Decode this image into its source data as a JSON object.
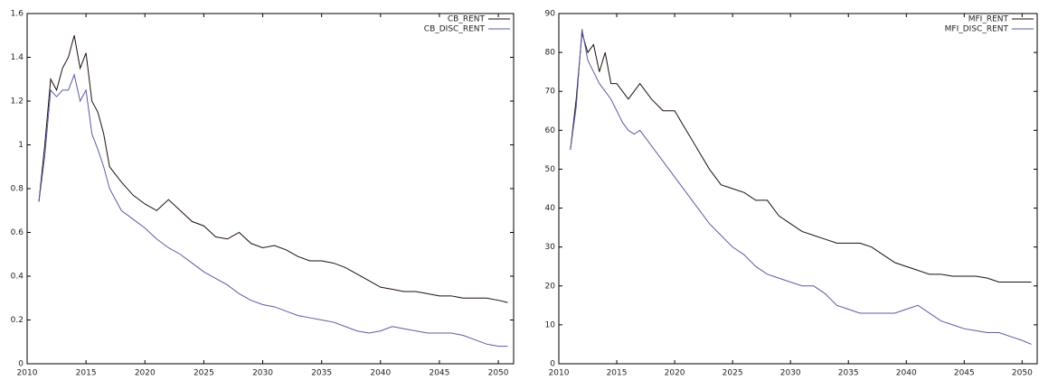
{
  "chart_data": [
    {
      "type": "line",
      "x": [
        2011,
        2011.5,
        2012,
        2012.5,
        2013,
        2013.5,
        2014,
        2014.5,
        2015,
        2015.5,
        2016,
        2016.5,
        2017,
        2018,
        2019,
        2020,
        2021,
        2022,
        2023,
        2024,
        2025,
        2026,
        2027,
        2028,
        2029,
        2030,
        2031,
        2032,
        2033,
        2034,
        2035,
        2036,
        2037,
        2038,
        2039,
        2040,
        2041,
        2042,
        2043,
        2044,
        2045,
        2046,
        2047,
        2048,
        2049,
        2050,
        2050.8
      ],
      "series": [
        {
          "name": "CB_RENT",
          "color": "#1e0d0d",
          "values": [
            0.74,
            1.0,
            1.3,
            1.25,
            1.35,
            1.4,
            1.5,
            1.35,
            1.42,
            1.2,
            1.15,
            1.05,
            0.9,
            0.83,
            0.77,
            0.73,
            0.7,
            0.75,
            0.7,
            0.65,
            0.63,
            0.58,
            0.57,
            0.6,
            0.55,
            0.53,
            0.54,
            0.52,
            0.49,
            0.47,
            0.47,
            0.46,
            0.44,
            0.41,
            0.38,
            0.35,
            0.34,
            0.33,
            0.33,
            0.32,
            0.31,
            0.31,
            0.3,
            0.3,
            0.3,
            0.29,
            0.28
          ]
        },
        {
          "name": "CB_DISC_RENT",
          "color": "#5b5ba3",
          "values": [
            0.74,
            0.95,
            1.25,
            1.22,
            1.25,
            1.25,
            1.32,
            1.2,
            1.25,
            1.05,
            0.98,
            0.9,
            0.8,
            0.7,
            0.66,
            0.62,
            0.57,
            0.53,
            0.5,
            0.46,
            0.42,
            0.39,
            0.36,
            0.32,
            0.29,
            0.27,
            0.26,
            0.24,
            0.22,
            0.21,
            0.2,
            0.19,
            0.17,
            0.15,
            0.14,
            0.15,
            0.17,
            0.16,
            0.15,
            0.14,
            0.14,
            0.14,
            0.13,
            0.11,
            0.09,
            0.08,
            0.08
          ]
        }
      ],
      "xlim": [
        2010,
        2051.3
      ],
      "xticks": [
        2010,
        2015,
        2020,
        2025,
        2030,
        2035,
        2040,
        2045,
        2050
      ],
      "ylim": [
        0,
        1.6
      ],
      "yticks": [
        0,
        0.2,
        0.4,
        0.6,
        0.8,
        1,
        1.2,
        1.4,
        1.6
      ],
      "legend": "upper right"
    },
    {
      "type": "line",
      "x": [
        2011,
        2011.5,
        2012,
        2012.5,
        2013,
        2013.5,
        2014,
        2014.5,
        2015,
        2015.5,
        2016,
        2016.5,
        2017,
        2018,
        2019,
        2020,
        2021,
        2022,
        2023,
        2024,
        2025,
        2026,
        2027,
        2028,
        2029,
        2030,
        2031,
        2032,
        2033,
        2034,
        2035,
        2036,
        2037,
        2038,
        2039,
        2040,
        2041,
        2042,
        2043,
        2044,
        2045,
        2046,
        2047,
        2048,
        2049,
        2050,
        2050.8
      ],
      "series": [
        {
          "name": "MFI_RENT",
          "color": "#1e0d0d",
          "values": [
            55,
            68,
            85,
            80,
            82,
            75,
            80,
            72,
            72,
            70,
            68,
            70,
            72,
            68,
            65,
            65,
            60,
            55,
            50,
            46,
            45,
            44,
            42,
            42,
            38,
            36,
            34,
            33,
            32,
            31,
            31,
            31,
            30,
            28,
            26,
            25,
            24,
            23,
            23,
            22.5,
            22.5,
            22.5,
            22,
            21,
            21,
            21,
            21
          ]
        },
        {
          "name": "MFI_DISC_RENT",
          "color": "#5b5ba3",
          "values": [
            55,
            66,
            86,
            78,
            75,
            72,
            70,
            68,
            65,
            62,
            60,
            59,
            60,
            56,
            52,
            48,
            44,
            40,
            36,
            33,
            30,
            28,
            25,
            23,
            22,
            21,
            20,
            20,
            18,
            15,
            14,
            13,
            13,
            13,
            13,
            14,
            15,
            13,
            11,
            10,
            9,
            8.5,
            8,
            8,
            7,
            6,
            5
          ]
        }
      ],
      "xlim": [
        2010,
        2051.3
      ],
      "xticks": [
        2010,
        2015,
        2020,
        2025,
        2030,
        2035,
        2040,
        2045,
        2050
      ],
      "ylim": [
        0,
        90
      ],
      "yticks": [
        0,
        10,
        20,
        30,
        40,
        50,
        60,
        70,
        80,
        90
      ],
      "legend": "upper right"
    }
  ]
}
